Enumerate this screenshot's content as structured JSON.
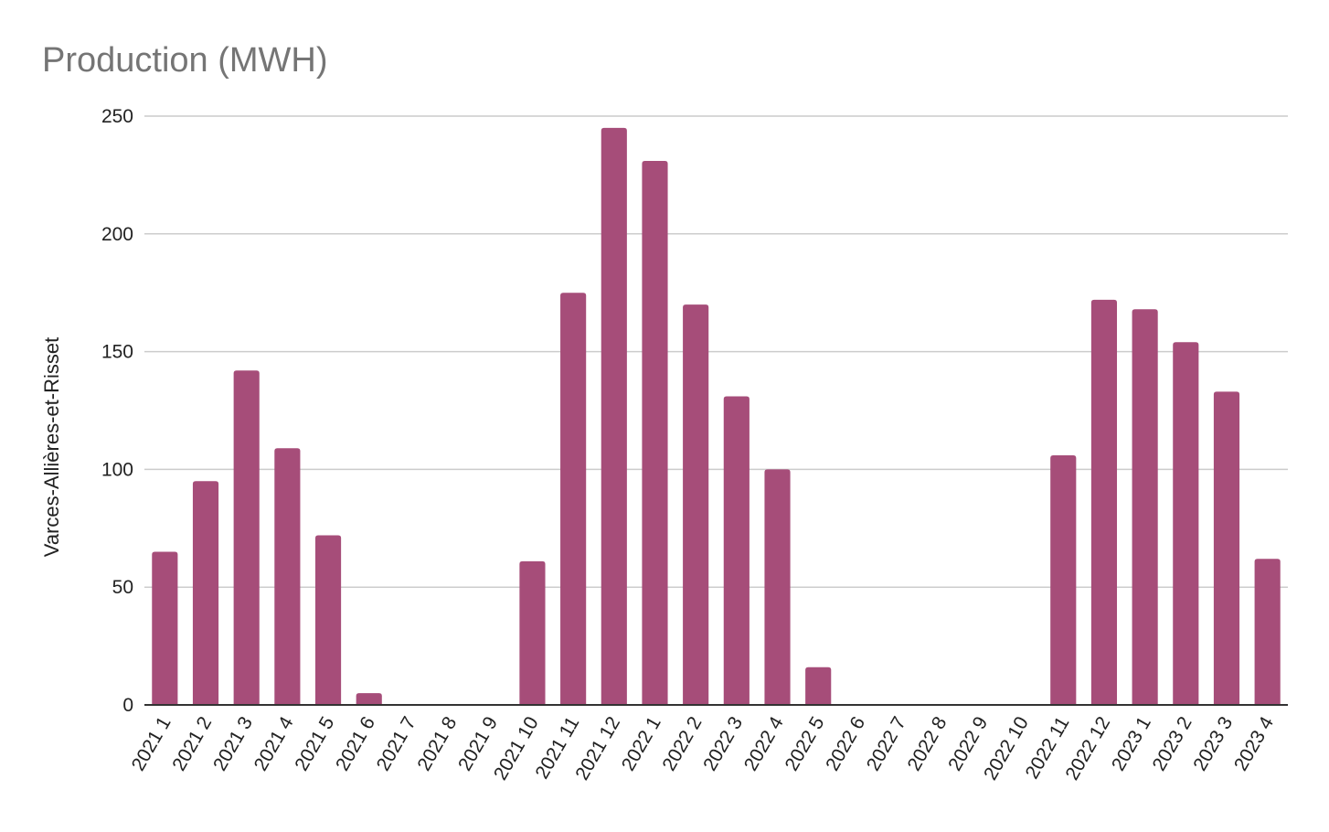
{
  "chart_data": {
    "type": "bar",
    "title": "Production (MWH)",
    "xlabel": "",
    "ylabel": "Varces-Allières-et-Risset",
    "categories": [
      "2021 1",
      "2021 2",
      "2021 3",
      "2021 4",
      "2021 5",
      "2021 6",
      "2021 7",
      "2021 8",
      "2021 9",
      "2021 10",
      "2021 11",
      "2021 12",
      "2022 1",
      "2022 2",
      "2022 3",
      "2022 4",
      "2022 5",
      "2022 6",
      "2022 7",
      "2022 8",
      "2022 9",
      "2022 10",
      "2022 11",
      "2022 12",
      "2023 1",
      "2023 2",
      "2023 3",
      "2023 4"
    ],
    "values": [
      65,
      95,
      142,
      109,
      72,
      5,
      0,
      0,
      0,
      61,
      175,
      245,
      231,
      170,
      131,
      100,
      16,
      0,
      0,
      0,
      0,
      0,
      106,
      172,
      168,
      154,
      133,
      62
    ],
    "ylim": [
      0,
      250
    ],
    "yticks": [
      0,
      50,
      100,
      150,
      200,
      250
    ],
    "grid": true,
    "legend": "none",
    "colors": {
      "bar": "#a64d79",
      "grid": "#cccccc",
      "axis": "#333333",
      "title": "#757575"
    }
  }
}
